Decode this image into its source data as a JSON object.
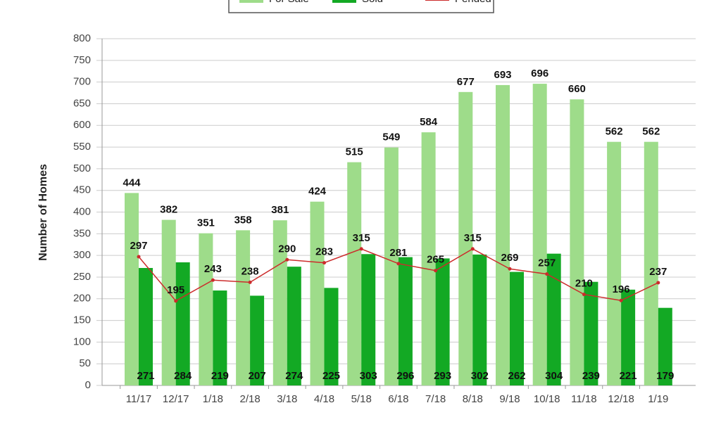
{
  "chart_data": {
    "type": "bar-line",
    "y_label": "Number of Homes",
    "categories": [
      "11/17",
      "12/17",
      "1/18",
      "2/18",
      "3/18",
      "4/18",
      "5/18",
      "6/18",
      "7/18",
      "8/18",
      "9/18",
      "10/18",
      "11/18",
      "12/18",
      "1/19"
    ],
    "series": [
      {
        "name": "For Sale",
        "type": "bar",
        "color": "#9edc8a",
        "values": [
          444,
          382,
          351,
          358,
          381,
          424,
          515,
          549,
          584,
          677,
          693,
          696,
          660,
          562,
          562
        ]
      },
      {
        "name": "Sold",
        "type": "bar",
        "color": "#13a924",
        "values": [
          271,
          284,
          219,
          207,
          274,
          225,
          303,
          296,
          293,
          302,
          262,
          304,
          239,
          221,
          179
        ]
      },
      {
        "name": "Pended",
        "type": "line",
        "color": "#cc2b2b",
        "values": [
          297,
          195,
          243,
          238,
          290,
          283,
          315,
          281,
          265,
          315,
          269,
          257,
          210,
          196,
          237
        ]
      }
    ],
    "ylim": [
      0,
      800
    ],
    "yticks": [
      0,
      50,
      100,
      150,
      200,
      250,
      300,
      350,
      400,
      450,
      500,
      550,
      600,
      650,
      700,
      750,
      800
    ],
    "grid": true,
    "legend": "top"
  }
}
